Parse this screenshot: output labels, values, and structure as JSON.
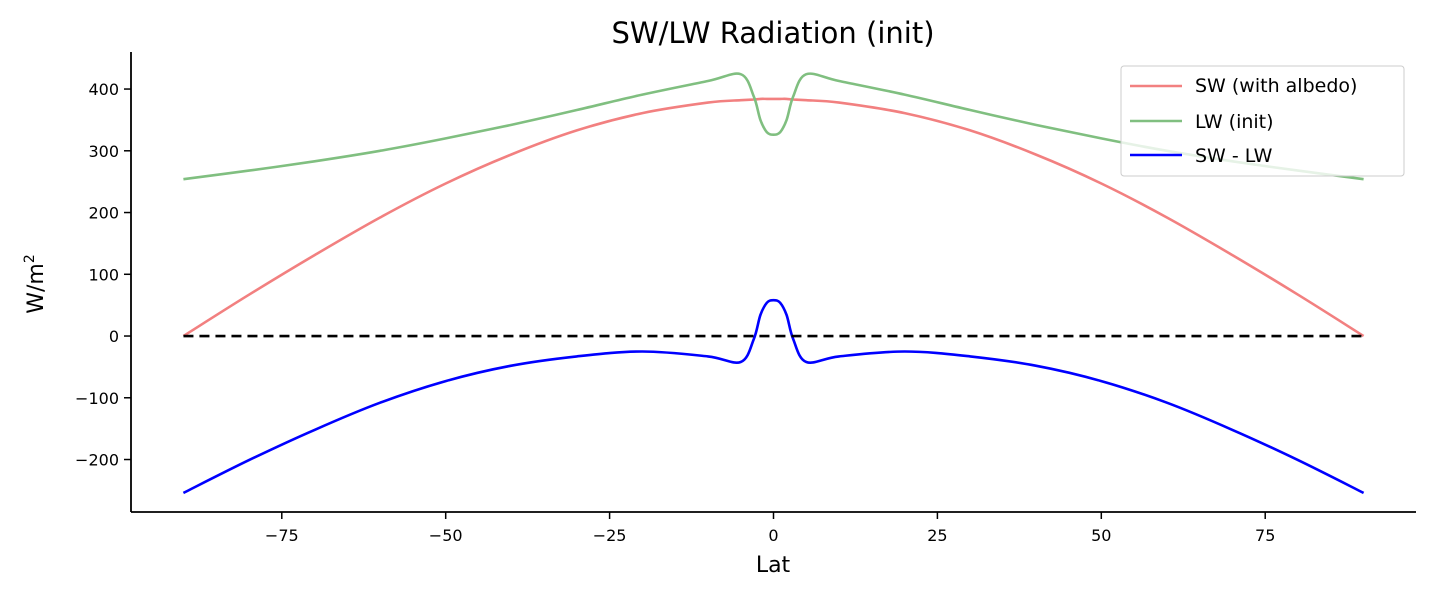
{
  "chart_data": {
    "type": "line",
    "title": "SW/LW Radiation (init)",
    "xlabel": "Lat",
    "ylabel": "W/m",
    "ylabel_superscript": "2",
    "xlim": [
      -98,
      98
    ],
    "ylim": [
      -285,
      460
    ],
    "xticks": [
      -75,
      -50,
      -25,
      0,
      25,
      50,
      75
    ],
    "xtick_labels": [
      "−75",
      "−50",
      "−25",
      "0",
      "25",
      "50",
      "75"
    ],
    "yticks": [
      -200,
      -100,
      0,
      100,
      200,
      300,
      400
    ],
    "ytick_labels": [
      "−200",
      "−100",
      "0",
      "100",
      "200",
      "300",
      "400"
    ],
    "grid": false,
    "legend_position": "top-right",
    "x": [
      -90,
      -80,
      -70,
      -60,
      -50,
      -40,
      -30,
      -20,
      -10,
      -5,
      -3,
      -2,
      -1,
      0,
      1,
      2,
      3,
      5,
      10,
      20,
      30,
      40,
      50,
      60,
      70,
      80,
      90
    ],
    "series": [
      {
        "name": "SW (with albedo)",
        "color": "#f28080",
        "values": [
          0,
          67,
          131,
          192,
          247,
          294,
          333,
          361,
          378,
          382,
          383,
          384,
          384,
          384,
          384,
          384,
          383,
          382,
          378,
          361,
          333,
          294,
          247,
          192,
          131,
          67,
          0
        ]
      },
      {
        "name": "LW (init)",
        "color": "#80bf80",
        "values": [
          254,
          268,
          283,
          300,
          320,
          342,
          366,
          391,
          413,
          424,
          388,
          350,
          330,
          326,
          330,
          350,
          388,
          424,
          413,
          391,
          366,
          342,
          320,
          300,
          283,
          268,
          254
        ]
      },
      {
        "name": "SW - LW",
        "color": "#0000ff",
        "values": [
          -254,
          -201,
          -152,
          -108,
          -73,
          -48,
          -33,
          -25,
          -33,
          -42,
          -5,
          34,
          54,
          58,
          54,
          34,
          -5,
          -42,
          -33,
          -25,
          -33,
          -48,
          -73,
          -108,
          -152,
          -201,
          -254
        ]
      }
    ],
    "reference_line": {
      "y": 0,
      "x_range": [
        -90,
        90
      ],
      "style": "dashed",
      "color": "#000000"
    }
  }
}
